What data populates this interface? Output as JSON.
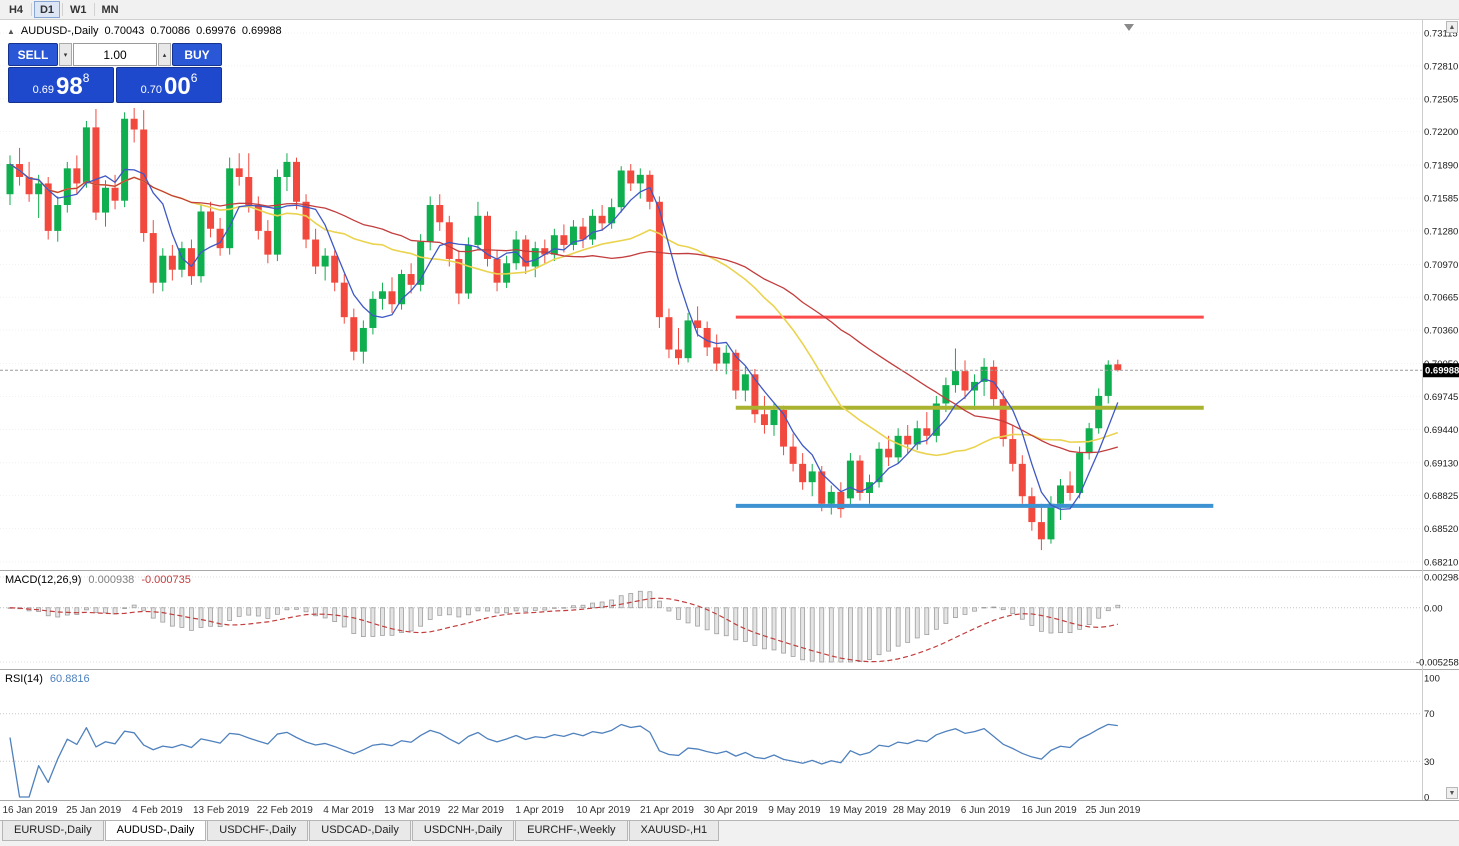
{
  "toolbar": {
    "timeframes": [
      {
        "label": "H4",
        "active": false
      },
      {
        "label": "D1",
        "active": true
      },
      {
        "label": "W1",
        "active": false
      },
      {
        "label": "MN",
        "active": false
      }
    ]
  },
  "chart": {
    "symbol_line": {
      "marker": "▲",
      "title": "AUDUSD-,Daily",
      "open": "0.70043",
      "high": "0.70086",
      "low": "0.69976",
      "close": "0.69988"
    },
    "trade_panel": {
      "sell_label": "SELL",
      "buy_label": "BUY",
      "volume": "1.00",
      "volume_down_icon": "▾",
      "volume_up_icon": "▴",
      "bid": {
        "prefix": "0.69",
        "big": "98",
        "sup": "8"
      },
      "ask": {
        "prefix": "0.70",
        "big": "00",
        "sup": "6"
      },
      "button_color": "#2a57d5",
      "price_color": "#1f49cc"
    },
    "scroll_up_icon": "▲",
    "scroll_down_icon": "▼"
  },
  "chart_data": {
    "type": "candlestick",
    "symbol": "AUDUSD-",
    "timeframe": "Daily",
    "up_color": "#0fae4e",
    "down_color": "#f2493e",
    "bid_line_color": "#9a9a9a",
    "price_axis": {
      "min": 0.6821,
      "max": 0.73115,
      "labels": [
        "0.73115",
        "0.72810",
        "0.72505",
        "0.72200",
        "0.71890",
        "0.71585",
        "0.71280",
        "0.70970",
        "0.70665",
        "0.70360",
        "0.70050",
        "0.69745",
        "0.69440",
        "0.69130",
        "0.68825",
        "0.68520",
        "0.68210"
      ],
      "current_price": 0.69988,
      "badge_text": "0.69988"
    },
    "date_axis": {
      "labels": [
        "16 Jan 2019",
        "25 Jan 2019",
        "4 Feb 2019",
        "13 Feb 2019",
        "22 Feb 2019",
        "4 Mar 2019",
        "13 Mar 2019",
        "22 Mar 2019",
        "1 Apr 2019",
        "10 Apr 2019",
        "21 Apr 2019",
        "30 Apr 2019",
        "9 May 2019",
        "19 May 2019",
        "28 May 2019",
        "6 Jun 2019",
        "16 Jun 2019",
        "25 Jun 2019"
      ]
    },
    "candles": [
      [
        0.7162,
        0.7198,
        0.7152,
        0.719
      ],
      [
        0.719,
        0.7205,
        0.717,
        0.7178
      ],
      [
        0.7178,
        0.7192,
        0.7155,
        0.7162
      ],
      [
        0.7162,
        0.718,
        0.714,
        0.7172
      ],
      [
        0.7172,
        0.7178,
        0.712,
        0.7128
      ],
      [
        0.7128,
        0.716,
        0.7118,
        0.7152
      ],
      [
        0.7152,
        0.7192,
        0.7145,
        0.7186
      ],
      [
        0.7186,
        0.7198,
        0.7162,
        0.7172
      ],
      [
        0.7172,
        0.723,
        0.7168,
        0.7224
      ],
      [
        0.7224,
        0.7241,
        0.7138,
        0.7145
      ],
      [
        0.7145,
        0.7175,
        0.7132,
        0.7168
      ],
      [
        0.7168,
        0.718,
        0.7148,
        0.7156
      ],
      [
        0.7156,
        0.7238,
        0.715,
        0.7232
      ],
      [
        0.7232,
        0.7242,
        0.721,
        0.7222
      ],
      [
        0.7222,
        0.724,
        0.7118,
        0.7126
      ],
      [
        0.7126,
        0.7138,
        0.707,
        0.708
      ],
      [
        0.708,
        0.7112,
        0.7072,
        0.7105
      ],
      [
        0.7105,
        0.7115,
        0.7082,
        0.7092
      ],
      [
        0.7092,
        0.7118,
        0.7085,
        0.7112
      ],
      [
        0.7112,
        0.712,
        0.7078,
        0.7086
      ],
      [
        0.7086,
        0.7152,
        0.708,
        0.7146
      ],
      [
        0.7146,
        0.7155,
        0.7122,
        0.713
      ],
      [
        0.713,
        0.714,
        0.7105,
        0.7112
      ],
      [
        0.7112,
        0.7196,
        0.7106,
        0.7186
      ],
      [
        0.7186,
        0.72,
        0.717,
        0.7178
      ],
      [
        0.7178,
        0.72,
        0.7145,
        0.7152
      ],
      [
        0.7152,
        0.716,
        0.712,
        0.7128
      ],
      [
        0.7128,
        0.7138,
        0.7098,
        0.7106
      ],
      [
        0.7106,
        0.7185,
        0.71,
        0.7178
      ],
      [
        0.7178,
        0.72,
        0.7165,
        0.7192
      ],
      [
        0.7192,
        0.7196,
        0.7148,
        0.7155
      ],
      [
        0.7155,
        0.7162,
        0.7112,
        0.712
      ],
      [
        0.712,
        0.713,
        0.7088,
        0.7095
      ],
      [
        0.7095,
        0.7112,
        0.7082,
        0.7105
      ],
      [
        0.7105,
        0.711,
        0.7072,
        0.708
      ],
      [
        0.708,
        0.7088,
        0.7042,
        0.7048
      ],
      [
        0.7048,
        0.7056,
        0.7008,
        0.7016
      ],
      [
        0.7016,
        0.7045,
        0.7005,
        0.7038
      ],
      [
        0.7038,
        0.7072,
        0.7032,
        0.7065
      ],
      [
        0.7065,
        0.708,
        0.7055,
        0.7072
      ],
      [
        0.7072,
        0.7085,
        0.7052,
        0.706
      ],
      [
        0.706,
        0.7092,
        0.7055,
        0.7088
      ],
      [
        0.7088,
        0.7098,
        0.707,
        0.7078
      ],
      [
        0.7078,
        0.7125,
        0.7072,
        0.7118
      ],
      [
        0.7118,
        0.716,
        0.711,
        0.7152
      ],
      [
        0.7152,
        0.7162,
        0.7128,
        0.7136
      ],
      [
        0.7136,
        0.7142,
        0.7095,
        0.7102
      ],
      [
        0.7102,
        0.711,
        0.706,
        0.707
      ],
      [
        0.707,
        0.7122,
        0.7065,
        0.7115
      ],
      [
        0.7115,
        0.7155,
        0.711,
        0.7142
      ],
      [
        0.7142,
        0.7146,
        0.7095,
        0.7102
      ],
      [
        0.7102,
        0.711,
        0.7072,
        0.708
      ],
      [
        0.708,
        0.7105,
        0.7075,
        0.7098
      ],
      [
        0.7098,
        0.7128,
        0.7092,
        0.712
      ],
      [
        0.712,
        0.7124,
        0.7088,
        0.7095
      ],
      [
        0.7095,
        0.7118,
        0.7085,
        0.7112
      ],
      [
        0.7112,
        0.712,
        0.7098,
        0.7106
      ],
      [
        0.7106,
        0.713,
        0.71,
        0.7124
      ],
      [
        0.7124,
        0.7134,
        0.7108,
        0.7115
      ],
      [
        0.7115,
        0.7138,
        0.711,
        0.7132
      ],
      [
        0.7132,
        0.714,
        0.7112,
        0.712
      ],
      [
        0.712,
        0.7148,
        0.7115,
        0.7142
      ],
      [
        0.7142,
        0.7152,
        0.7128,
        0.7135
      ],
      [
        0.7135,
        0.7158,
        0.713,
        0.715
      ],
      [
        0.715,
        0.7188,
        0.7145,
        0.7184
      ],
      [
        0.7184,
        0.719,
        0.7165,
        0.7172
      ],
      [
        0.7172,
        0.7186,
        0.7158,
        0.718
      ],
      [
        0.718,
        0.7184,
        0.7148,
        0.7155
      ],
      [
        0.7155,
        0.716,
        0.7038,
        0.7048
      ],
      [
        0.7048,
        0.7056,
        0.701,
        0.7018
      ],
      [
        0.7018,
        0.7038,
        0.7004,
        0.701
      ],
      [
        0.701,
        0.7052,
        0.7006,
        0.7045
      ],
      [
        0.7045,
        0.7058,
        0.703,
        0.7038
      ],
      [
        0.7038,
        0.7044,
        0.7012,
        0.702
      ],
      [
        0.702,
        0.7032,
        0.6998,
        0.7005
      ],
      [
        0.7005,
        0.7022,
        0.6995,
        0.7015
      ],
      [
        0.7015,
        0.7018,
        0.6972,
        0.698
      ],
      [
        0.698,
        0.7002,
        0.697,
        0.6995
      ],
      [
        0.6995,
        0.7,
        0.695,
        0.6958
      ],
      [
        0.6958,
        0.6975,
        0.694,
        0.6948
      ],
      [
        0.6948,
        0.6968,
        0.6938,
        0.6962
      ],
      [
        0.6962,
        0.6966,
        0.692,
        0.6928
      ],
      [
        0.6928,
        0.694,
        0.6905,
        0.6912
      ],
      [
        0.6912,
        0.6922,
        0.6888,
        0.6895
      ],
      [
        0.6895,
        0.6912,
        0.6882,
        0.6905
      ],
      [
        0.6905,
        0.691,
        0.6868,
        0.6875
      ],
      [
        0.6875,
        0.6892,
        0.6865,
        0.6886
      ],
      [
        0.6886,
        0.6895,
        0.6862,
        0.687
      ],
      [
        0.688,
        0.6922,
        0.6872,
        0.6915
      ],
      [
        0.6915,
        0.692,
        0.6878,
        0.6885
      ],
      [
        0.6885,
        0.6902,
        0.6875,
        0.6895
      ],
      [
        0.6895,
        0.6932,
        0.689,
        0.6926
      ],
      [
        0.6926,
        0.6938,
        0.691,
        0.6918
      ],
      [
        0.6918,
        0.6945,
        0.6912,
        0.6938
      ],
      [
        0.6938,
        0.6948,
        0.6922,
        0.693
      ],
      [
        0.693,
        0.6952,
        0.6925,
        0.6945
      ],
      [
        0.6945,
        0.696,
        0.693,
        0.6938
      ],
      [
        0.6938,
        0.6975,
        0.6932,
        0.6968
      ],
      [
        0.6968,
        0.6992,
        0.696,
        0.6985
      ],
      [
        0.6985,
        0.7019,
        0.6978,
        0.6998
      ],
      [
        0.6998,
        0.7008,
        0.6972,
        0.698
      ],
      [
        0.698,
        0.6995,
        0.6962,
        0.6988
      ],
      [
        0.6988,
        0.701,
        0.6975,
        0.7002
      ],
      [
        0.7002,
        0.7008,
        0.6965,
        0.6972
      ],
      [
        0.6972,
        0.698,
        0.6928,
        0.6935
      ],
      [
        0.6935,
        0.6948,
        0.6905,
        0.6912
      ],
      [
        0.6912,
        0.692,
        0.6875,
        0.6882
      ],
      [
        0.6882,
        0.689,
        0.685,
        0.6858
      ],
      [
        0.6858,
        0.6875,
        0.6832,
        0.6842
      ],
      [
        0.6842,
        0.6882,
        0.6838,
        0.6875
      ],
      [
        0.6875,
        0.6898,
        0.686,
        0.6892
      ],
      [
        0.6892,
        0.6905,
        0.6878,
        0.6885
      ],
      [
        0.6885,
        0.6928,
        0.688,
        0.6922
      ],
      [
        0.6922,
        0.695,
        0.6916,
        0.6945
      ],
      [
        0.6945,
        0.6982,
        0.694,
        0.6975
      ],
      [
        0.6975,
        0.7008,
        0.6968,
        0.7004
      ],
      [
        0.70043,
        0.70086,
        0.69976,
        0.69988
      ]
    ],
    "moving_averages": [
      {
        "period": 20,
        "color": "#ead34f",
        "width": 1.6
      },
      {
        "period": 34,
        "color": "#c23d3d",
        "width": 1.3
      },
      {
        "period": 5,
        "color": "#3f58c4",
        "width": 1.3
      }
    ],
    "hlines": [
      {
        "price": 0.7048,
        "color": "#fb4b4b",
        "width": 3,
        "from": 76,
        "to": 125
      },
      {
        "price": 0.6964,
        "color": "#a9b330",
        "width": 4,
        "from": 76,
        "to": 125
      },
      {
        "price": 0.6873,
        "color": "#3d93d1",
        "width": 4,
        "from": 76,
        "to": 126
      }
    ],
    "macd": {
      "label": "MACD(12,26,9)",
      "value": "0.000938",
      "signal_value": "-0.000735",
      "fast": 12,
      "slow": 26,
      "signal": 9,
      "max": 0.002984,
      "min": -0.005258,
      "axis_labels": [
        "0.002984",
        "0.00",
        "-0.005258"
      ],
      "bar_fill": "#e4e4e4",
      "bar_stroke": "#9a9a9a",
      "signal_color": "#c23d3d"
    },
    "rsi": {
      "label": "RSI(14)",
      "value": "60.8816",
      "period": 14,
      "color": "#4f81bd",
      "levels": [
        70,
        30
      ],
      "axis_labels": [
        "100",
        "70",
        "30",
        "0"
      ]
    }
  },
  "tabs": [
    {
      "label": "EURUSD-,Daily",
      "active": false
    },
    {
      "label": "AUDUSD-,Daily",
      "active": true
    },
    {
      "label": "USDCHF-,Daily",
      "active": false
    },
    {
      "label": "USDCAD-,Daily",
      "active": false
    },
    {
      "label": "USDCNH-,Daily",
      "active": false
    },
    {
      "label": "EURCHF-,Weekly",
      "active": false
    },
    {
      "label": "XAUUSD-,H1",
      "active": false
    }
  ]
}
